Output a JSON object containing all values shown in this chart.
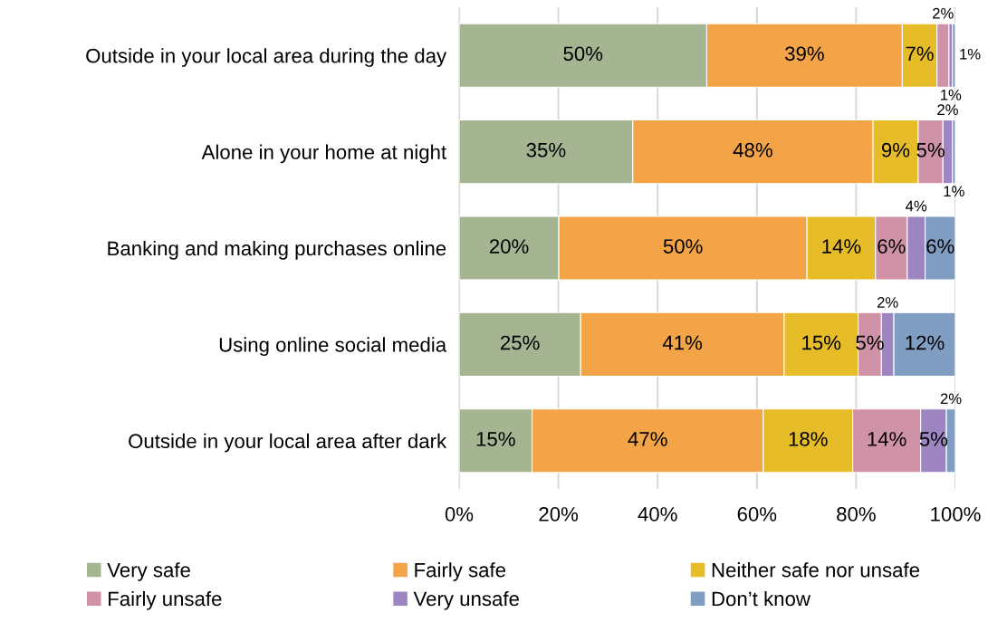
{
  "chart_data": {
    "type": "bar",
    "orientation": "horizontal",
    "stacked": true,
    "categories": [
      "Outside in your local area during the day",
      "Alone in your home at night",
      "Banking and making purchases online",
      "Using online social media",
      "Outside in your local area after dark"
    ],
    "series": [
      {
        "name": "Very safe",
        "color": "#a5b592",
        "values": [
          49.9,
          35.0,
          20.1,
          24.5,
          14.7
        ],
        "value_labels": [
          "50%",
          "35%",
          "20%",
          "25%",
          "15%"
        ]
      },
      {
        "name": "Fairly safe",
        "color": "#f3a447",
        "values": [
          39.4,
          48.4,
          50,
          41,
          46.6
        ],
        "value_labels": [
          "39%",
          "48%",
          "50%",
          "41%",
          "47%"
        ]
      },
      {
        "name": "Neither safe nor unsafe",
        "color": "#e7bc29",
        "values": [
          7.0,
          9.1,
          13.8,
          14.9,
          18
        ],
        "value_labels": [
          "7%",
          "9%",
          "14%",
          "15%",
          "18%"
        ]
      },
      {
        "name": "Fairly unsafe",
        "color": "#d092a7",
        "values": [
          2.4,
          5.0,
          6.4,
          4.7,
          13.7
        ],
        "value_labels": [
          "2%",
          "5%",
          "6%",
          "5%",
          "14%"
        ]
      },
      {
        "name": "Very unsafe",
        "color": "#9c85c0",
        "values": [
          0.7,
          1.9,
          3.6,
          2.5,
          5.2
        ],
        "value_labels": [
          "1%",
          "2%",
          "4%",
          "2%",
          "5%"
        ]
      },
      {
        "name": "Don’t know",
        "color": "#809ec2",
        "values": [
          0.6,
          0.6,
          6.1,
          12.4,
          1.8
        ],
        "value_labels": [
          "1%",
          "1%",
          "6%",
          "12%",
          "2%"
        ]
      }
    ],
    "xlim": [
      0,
      100
    ],
    "xticks": [
      {
        "value": 0,
        "label": "0%"
      },
      {
        "value": 20,
        "label": "20%"
      },
      {
        "value": 40,
        "label": "40%"
      },
      {
        "value": 60,
        "label": "60%"
      },
      {
        "value": 80,
        "label": "80%"
      },
      {
        "value": 100,
        "label": "100%"
      }
    ],
    "grid": "x",
    "legend": "bottom"
  }
}
